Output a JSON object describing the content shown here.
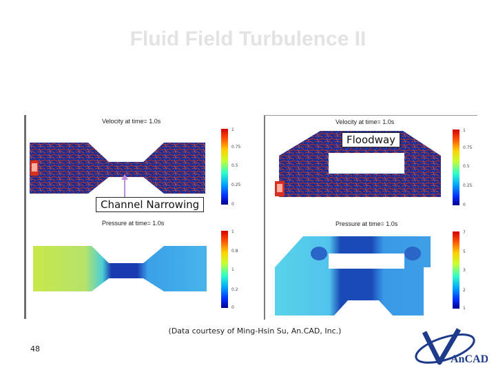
{
  "slide": {
    "title": "Fluid Field Turbulence II",
    "caption": "(Data courtesy of Ming-Hsin Su, An.CAD, Inc.)",
    "page_number": "48"
  },
  "logo": {
    "text": "AnCAD"
  },
  "left_panel": {
    "velocity_title": "Velocity at time=  1.0s",
    "pressure_title": "Pressure at time=  1.0s",
    "velocity_ticks": [
      "1",
      "0.75",
      "0.5",
      "0.25",
      "0"
    ],
    "pressure_ticks": [
      "1",
      "0.8",
      "1",
      "0.2",
      "0"
    ]
  },
  "right_panel": {
    "velocity_title": "Velocity at time=  1.0s",
    "pressure_title": "Pressure at time=  1.0s",
    "velocity_ticks": [
      "1",
      "0.75",
      "0.5",
      "0.25",
      "0"
    ],
    "pressure_ticks": [
      "7",
      "5",
      "3",
      "2",
      "1"
    ]
  },
  "callouts": {
    "floodway": "Floodway",
    "channel_narrowing": "Channel Narrowing"
  },
  "colors": {
    "title": "#e3e3e3",
    "flow_dark": "#1a2a8a",
    "streak": "#b0302a",
    "callout_arrow": "#c08ad8"
  }
}
